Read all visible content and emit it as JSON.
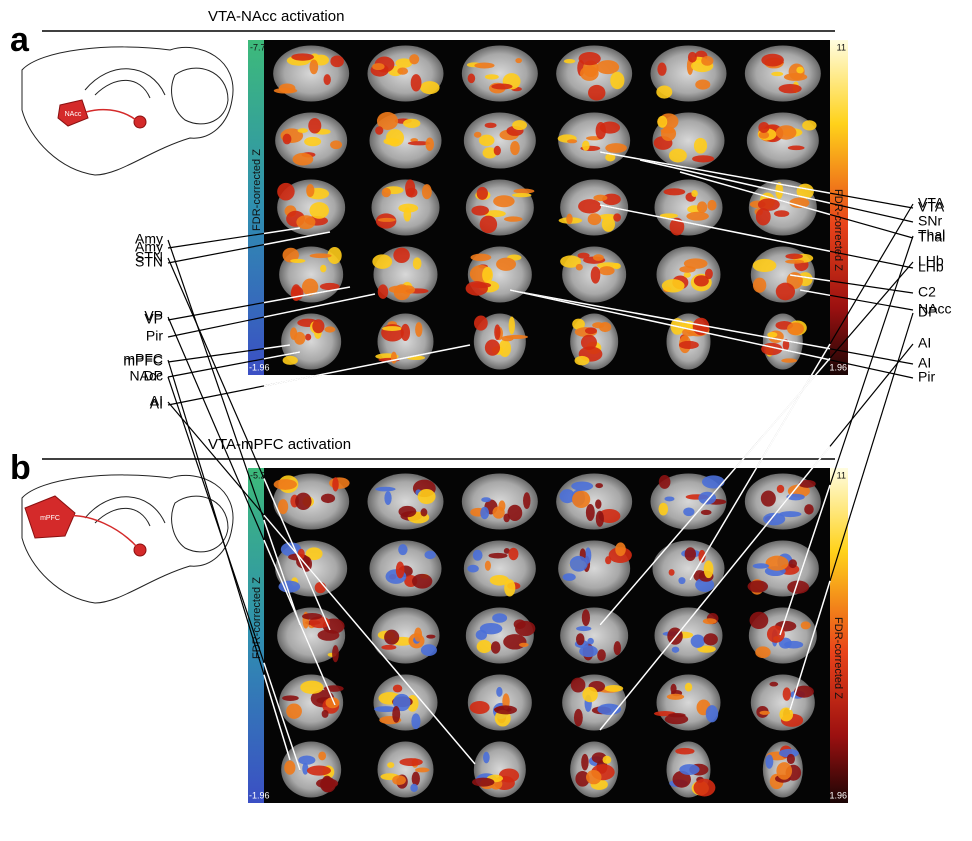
{
  "panels": [
    {
      "letter": "a",
      "title": "VTA-NAcc activation",
      "inset_label": "NAcc",
      "colorbar_left": {
        "label": "FDR-corrected Z",
        "top": "-7.7",
        "bottom": "-1.96"
      },
      "colorbar_right": {
        "label": "FDR-corrected Z",
        "top": "11",
        "bottom": "1.96"
      },
      "left_labels": [
        "Amy",
        "STN",
        "VP",
        "Pir",
        "mPFC",
        "NAcc",
        "AI"
      ],
      "right_labels": [
        "VTA",
        "SNr",
        "Thal",
        "LHb",
        "C2",
        "NAcc",
        "AI",
        "Pir"
      ]
    },
    {
      "letter": "b",
      "title": "VTA-mPFC activation",
      "inset_label": "mPFC",
      "colorbar_left": {
        "label": "FDR-corrected Z",
        "top": "-5.2",
        "bottom": "-1.96"
      },
      "colorbar_right": {
        "label": "FDR-corrected Z",
        "top": "11",
        "bottom": "1.96"
      },
      "left_labels": [
        "Amy",
        "STN",
        "VP",
        "mPFC",
        "DP",
        "AI"
      ],
      "right_labels": [
        "VTA",
        "Thal",
        "LHb",
        "DP",
        "AI"
      ]
    }
  ]
}
